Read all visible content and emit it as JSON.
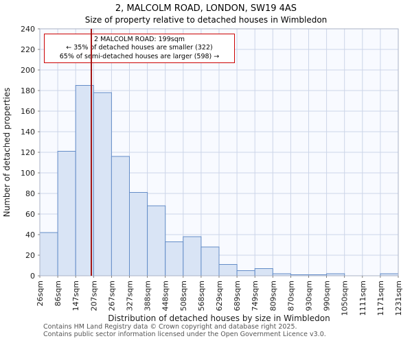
{
  "title": "2, MALCOLM ROAD, LONDON, SW19 4AS",
  "subtitle": "Size of property relative to detached houses in Wimbledon",
  "annotation": {
    "line1": "2 MALCOLM ROAD: 199sqm",
    "line2": "← 35% of detached houses are smaller (322)",
    "line3": "65% of semi-detached houses are larger (598) →"
  },
  "footer": {
    "line1": "Contains HM Land Registry data © Crown copyright and database right 2025.",
    "line2": "Contains public sector information licensed under the Open Government Licence v3.0."
  },
  "chart_data": {
    "type": "bar",
    "title": "2, MALCOLM ROAD, LONDON, SW19 4AS",
    "subtitle": "Size of property relative to detached houses in Wimbledon",
    "xlabel": "Distribution of detached houses by size in Wimbledon",
    "ylabel": "Number of detached properties",
    "bin_edges_sqm": [
      26,
      86,
      147,
      207,
      267,
      327,
      388,
      448,
      508,
      568,
      629,
      689,
      749,
      809,
      870,
      930,
      990,
      1050,
      1111,
      1171,
      1231
    ],
    "tick_labels": [
      "26sqm",
      "86sqm",
      "147sqm",
      "207sqm",
      "267sqm",
      "327sqm",
      "388sqm",
      "448sqm",
      "508sqm",
      "568sqm",
      "629sqm",
      "689sqm",
      "749sqm",
      "809sqm",
      "870sqm",
      "930sqm",
      "990sqm",
      "1050sqm",
      "1111sqm",
      "1171sqm",
      "1231sqm"
    ],
    "values": [
      42,
      121,
      185,
      178,
      116,
      81,
      68,
      33,
      38,
      28,
      11,
      5,
      7,
      2,
      1,
      1,
      2,
      0,
      0,
      2
    ],
    "ylim": [
      0,
      240
    ],
    "yticks": [
      0,
      20,
      40,
      60,
      80,
      100,
      120,
      140,
      160,
      180,
      200,
      220,
      240
    ],
    "grid": true,
    "legend": "none",
    "marker_value_sqm": 199,
    "colors": {
      "bar_fill": "#d9e4f5",
      "bar_border": "#638cc7",
      "marker_line": "#a31515",
      "annotation_border": "#cc0000",
      "grid": "#ccd5e8",
      "plot_bg": "#f8faff",
      "frame": "#a9b2c6",
      "tick": "#666666",
      "text": "#1a1a1a"
    }
  }
}
